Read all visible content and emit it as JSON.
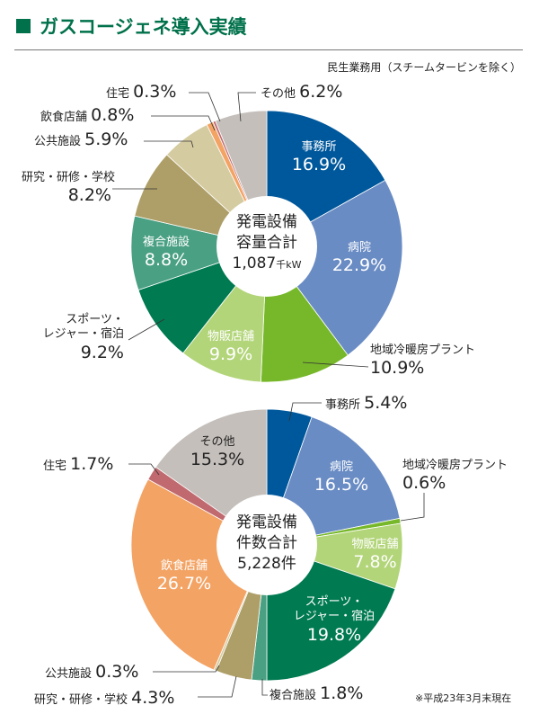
{
  "title": "ガスコージェネ導入実績",
  "subtitle": "民生業務用（スチームタービンを除く）",
  "footnote": "※平成23年3月末現在",
  "colors": {
    "accent": "#00714a"
  },
  "chart_data": [
    {
      "type": "pie",
      "donut": true,
      "center_label": [
        "発電設備",
        "容量合計"
      ],
      "center_value": "1,087",
      "center_unit": "千kW",
      "categories": [
        "事務所",
        "病院",
        "地域冷暖房プラント",
        "物販店舗",
        "スポーツ・レジャー・宿泊",
        "複合施設",
        "研究・研修・学校",
        "公共施設",
        "飲食店舗",
        "住宅",
        "その他"
      ],
      "values": [
        16.9,
        22.9,
        10.9,
        9.9,
        9.2,
        8.8,
        8.2,
        5.9,
        0.8,
        0.3,
        6.2
      ],
      "labels": [
        "16.9%",
        "22.9%",
        "10.9%",
        "9.9%",
        "9.2%",
        "8.8%",
        "8.2%",
        "5.9%",
        "0.8%",
        "0.3%",
        "6.2%"
      ],
      "colors": [
        "#00589c",
        "#6a8cc4",
        "#77b82a",
        "#b3d57a",
        "#007a50",
        "#4aa083",
        "#ae9f68",
        "#d5cba0",
        "#f3a364",
        "#c0696f",
        "#c4bfbb"
      ]
    },
    {
      "type": "pie",
      "donut": true,
      "center_label": [
        "発電設備",
        "件数合計"
      ],
      "center_value": "5,228件",
      "categories": [
        "事務所",
        "病院",
        "地域冷暖房プラント",
        "物販店舗",
        "スポーツ・レジャー・宿泊",
        "複合施設",
        "研究・研修・学校",
        "公共施設",
        "飲食店舗",
        "住宅",
        "その他"
      ],
      "values": [
        5.4,
        16.5,
        0.6,
        7.8,
        19.8,
        1.8,
        4.3,
        0.3,
        26.7,
        1.7,
        15.3
      ],
      "labels": [
        "5.4%",
        "16.5%",
        "0.6%",
        "7.8%",
        "19.8%",
        "1.8%",
        "4.3%",
        "0.3%",
        "26.7%",
        "1.7%",
        "15.3%"
      ],
      "colors": [
        "#00589c",
        "#6a8cc4",
        "#77b82a",
        "#b3d57a",
        "#007a50",
        "#4aa083",
        "#ae9f68",
        "#d5cba0",
        "#f3a364",
        "#c0696f",
        "#c4bfbb"
      ]
    }
  ],
  "text": {
    "sports1": "スポーツ・",
    "sports2": "レジャー・宿泊"
  }
}
